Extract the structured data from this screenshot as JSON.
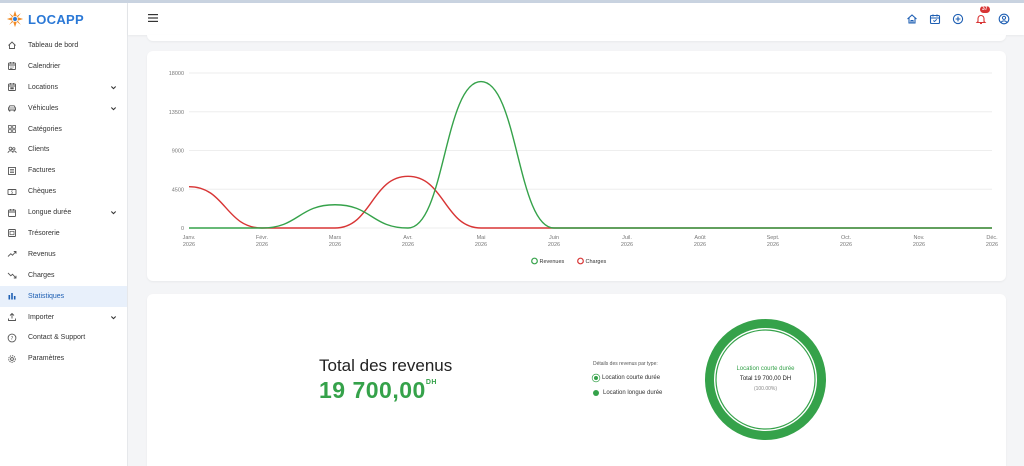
{
  "app": {
    "name": "LOCAPP",
    "brand_color": "#2a78d6"
  },
  "sidebar": {
    "items": [
      {
        "label": "Tableau de bord",
        "icon": "home-icon",
        "chevron": false,
        "active": false
      },
      {
        "label": "Calendrier",
        "icon": "calendar-icon",
        "chevron": false,
        "active": false
      },
      {
        "label": "Locations",
        "icon": "calendar-car-icon",
        "chevron": true,
        "active": false
      },
      {
        "label": "Véhicules",
        "icon": "car-icon",
        "chevron": true,
        "active": false
      },
      {
        "label": "Catégories",
        "icon": "grid-icon",
        "chevron": false,
        "active": false
      },
      {
        "label": "Clients",
        "icon": "users-icon",
        "chevron": false,
        "active": false
      },
      {
        "label": "Factures",
        "icon": "invoice-icon",
        "chevron": false,
        "active": false
      },
      {
        "label": "Chèques",
        "icon": "cheque-icon",
        "chevron": false,
        "active": false
      },
      {
        "label": "Longue durée",
        "icon": "calendar-long-icon",
        "chevron": true,
        "active": false
      },
      {
        "label": "Trésorerie",
        "icon": "treasury-icon",
        "chevron": false,
        "active": false
      },
      {
        "label": "Revenus",
        "icon": "trend-up-icon",
        "chevron": false,
        "active": false
      },
      {
        "label": "Charges",
        "icon": "trend-down-icon",
        "chevron": false,
        "active": false
      },
      {
        "label": "Statistiques",
        "icon": "bar-chart-icon",
        "chevron": false,
        "active": true
      },
      {
        "label": "Importer",
        "icon": "upload-icon",
        "chevron": true,
        "active": false
      },
      {
        "label": "Contact & Support",
        "icon": "help-icon",
        "chevron": false,
        "active": false
      },
      {
        "label": "Paramètres",
        "icon": "gear-icon",
        "chevron": false,
        "active": false
      }
    ]
  },
  "header": {
    "notification_count": "37",
    "icons": [
      "home-icon",
      "calendar-icon",
      "plus-circle-icon",
      "bell-icon",
      "user-icon"
    ]
  },
  "chart_data": {
    "type": "line",
    "categories": [
      "Janv. 2026",
      "Févr. 2026",
      "Mars 2026",
      "Avr. 2026",
      "Mai 2026",
      "Juin 2026",
      "Juil. 2026",
      "Août 2026",
      "Sept. 2026",
      "Oct. 2026",
      "Nov. 2026",
      "Déc. 2026"
    ],
    "series": [
      {
        "name": "Revenues",
        "color": "#35a24a",
        "values": [
          0,
          0,
          2700,
          0,
          17000,
          0,
          0,
          0,
          0,
          0,
          0,
          0
        ]
      },
      {
        "name": "Charges",
        "color": "#d83535",
        "values": [
          4800,
          0,
          0,
          6000,
          0,
          0,
          0,
          0,
          0,
          0,
          0,
          0
        ]
      }
    ],
    "yticks": [
      "0",
      "4500",
      "9000",
      "13500",
      "18000"
    ],
    "ylim": [
      0,
      18000
    ],
    "legend_position": "bottom-center",
    "grid": true
  },
  "revenue": {
    "title": "Total des revenus",
    "amount": "19 700,00",
    "currency": "DH",
    "details_title": "Détails des revenus par type:",
    "types": [
      "Location courte durée",
      "Location longue durée"
    ],
    "donut": {
      "name": "Location courte durée",
      "total": "Total 19 700,00 DH",
      "percent": "(100.00%)",
      "color": "#35a24a",
      "fraction": 1.0
    }
  }
}
